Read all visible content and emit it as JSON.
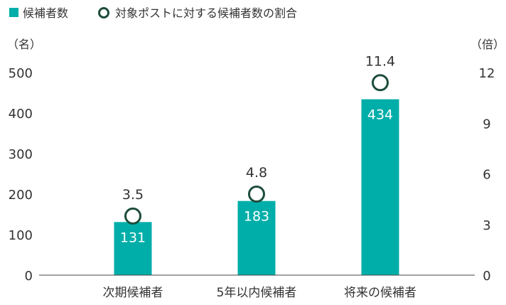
{
  "legend": {
    "bar_label": "候補者数",
    "marker_label": "対象ポストに対する候補者数の割合"
  },
  "colors": {
    "bar": "#00aea9",
    "marker_stroke": "#1d4d3a",
    "marker_fill": "#ffffff",
    "text": "#333333",
    "axis": "#444444"
  },
  "chart_data": {
    "type": "bar",
    "categories": [
      "次期候補者",
      "5年以内候補者",
      "将来の候補者"
    ],
    "series": [
      {
        "name": "候補者数",
        "type": "bar",
        "axis": "left",
        "values": [
          131,
          183,
          434
        ]
      },
      {
        "name": "対象ポストに対する候補者数の割合",
        "type": "scatter",
        "axis": "right",
        "values": [
          3.5,
          4.8,
          11.4
        ]
      }
    ],
    "y_left": {
      "unit_label": "（名）",
      "ylim": [
        0,
        500
      ],
      "ticks": [
        0,
        100,
        200,
        300,
        400,
        500
      ]
    },
    "y_right": {
      "unit_label": "（倍）",
      "ylim": [
        0,
        12
      ],
      "ticks": [
        0,
        3,
        6,
        9,
        12
      ]
    },
    "grid": false,
    "legend_position": "top-left"
  }
}
